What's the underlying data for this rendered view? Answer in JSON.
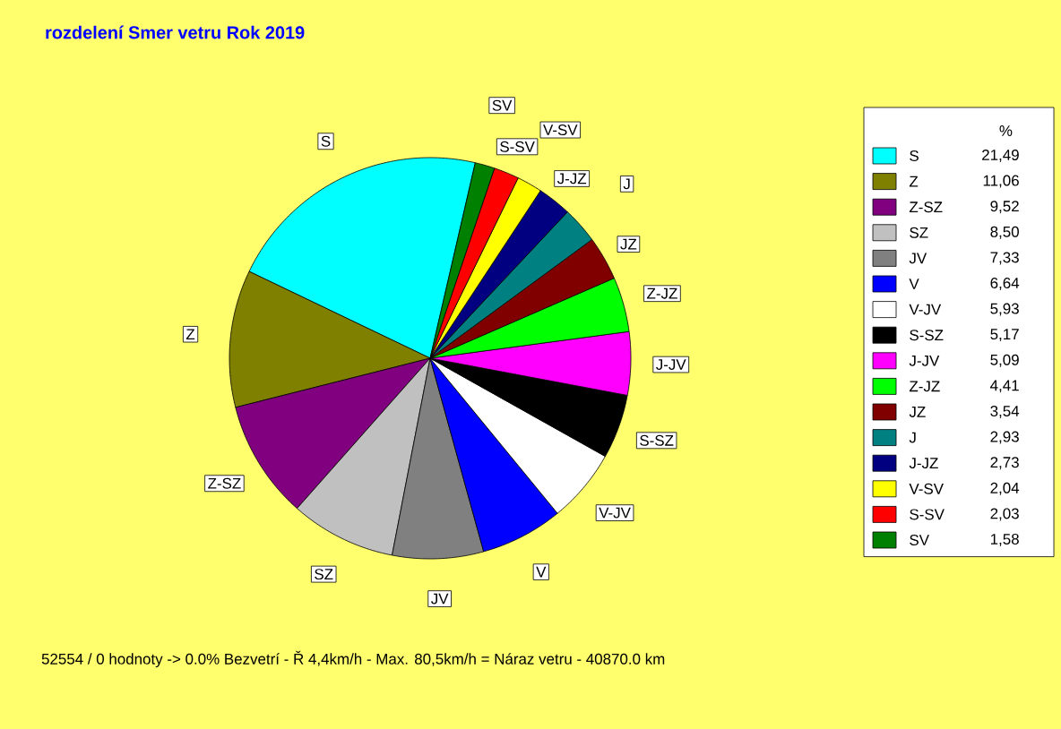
{
  "chart_data": {
    "type": "pie",
    "title": "rozdelení  Smer vetru    Rok 2019",
    "categories": [
      "S",
      "Z",
      "Z-SZ",
      "SZ",
      "JV",
      "V",
      "V-JV",
      "S-SZ",
      "J-JV",
      "Z-JZ",
      "JZ",
      "J",
      "J-JZ",
      "V-SV",
      "S-SV",
      "SV"
    ],
    "values": [
      21.49,
      11.06,
      9.52,
      8.5,
      7.33,
      6.64,
      5.93,
      5.17,
      5.09,
      4.41,
      3.54,
      2.93,
      2.73,
      2.04,
      2.03,
      1.58
    ],
    "value_labels": [
      "21,49",
      "11,06",
      "9,52",
      "8,50",
      "7,33",
      "6,64",
      "5,93",
      "5,17",
      "5,09",
      "4,41",
      "3,54",
      "2,93",
      "2,73",
      "2,04",
      "2,03",
      "1,58"
    ],
    "colors": [
      "#00ffff",
      "#808000",
      "#800080",
      "#c0c0c0",
      "#808080",
      "#0000ff",
      "#ffffff",
      "#000000",
      "#ff00ff",
      "#00ff00",
      "#800000",
      "#008080",
      "#000080",
      "#ffff00",
      "#ff0000",
      "#008000"
    ],
    "legend": "right",
    "legend_title": "%",
    "annotations": [
      "52554 / 0 hodnoty  -> 0.0% Bezvetrí   -   Ř 4,4km/h  -  Max. 80,5km/h = Náraz vetru   -   40870.0 km"
    ]
  }
}
